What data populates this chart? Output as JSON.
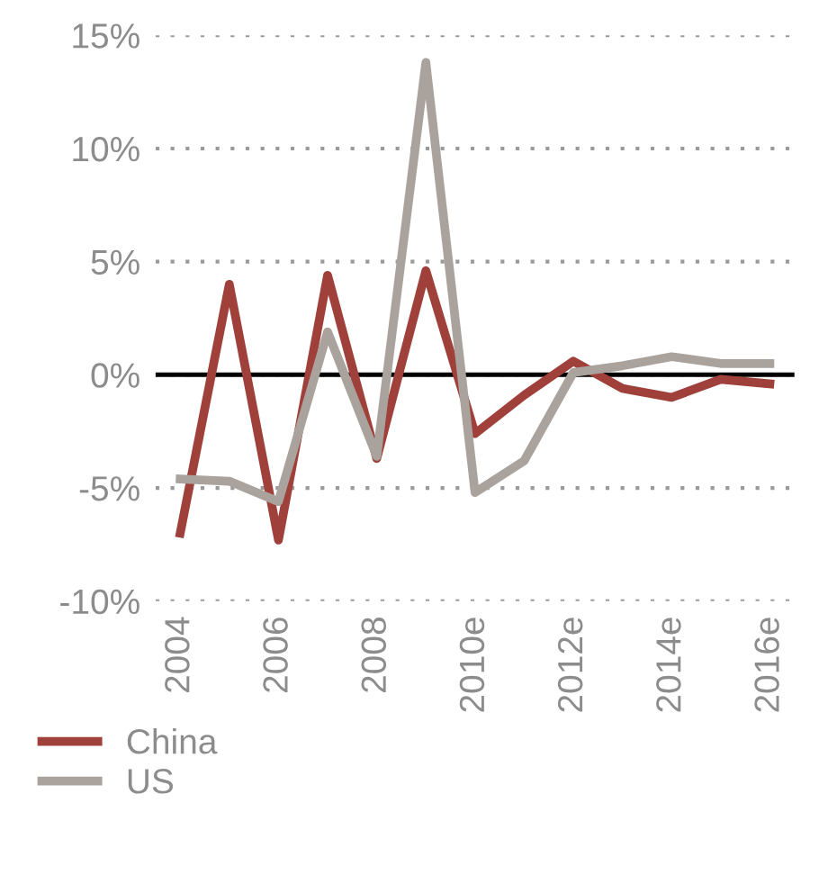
{
  "chart_data": {
    "type": "line",
    "categories": [
      "2004",
      null,
      "2006",
      null,
      "2008",
      null,
      "2010e",
      null,
      "2012e",
      null,
      "2014e",
      null,
      "2016e"
    ],
    "series": [
      {
        "name": "China",
        "color": "#a0403a",
        "values": [
          -7.0,
          4.0,
          -7.3,
          4.4,
          -3.7,
          4.6,
          -2.6,
          -0.9,
          0.6,
          -0.6,
          -1.0,
          -0.2,
          -0.4
        ]
      },
      {
        "name": "US",
        "color": "#a9a29d",
        "values": [
          -4.6,
          -4.7,
          -5.6,
          1.9,
          -3.6,
          13.8,
          -5.2,
          -3.8,
          0.1,
          0.4,
          0.8,
          0.5,
          0.5
        ]
      }
    ],
    "ylim": [
      -10,
      15
    ],
    "yticks": [
      {
        "value": -10,
        "label": "-10%"
      },
      {
        "value": -5,
        "label": "-5%"
      },
      {
        "value": 0,
        "label": "0%"
      },
      {
        "value": 5,
        "label": "5%"
      },
      {
        "value": 10,
        "label": "10%"
      },
      {
        "value": 15,
        "label": "15%"
      }
    ],
    "ref_lines": [
      {
        "axis": "y",
        "value": 0,
        "color": "#000000"
      }
    ],
    "grid": "y",
    "legend": "bottom",
    "marker": "none",
    "line_style": "solid"
  }
}
